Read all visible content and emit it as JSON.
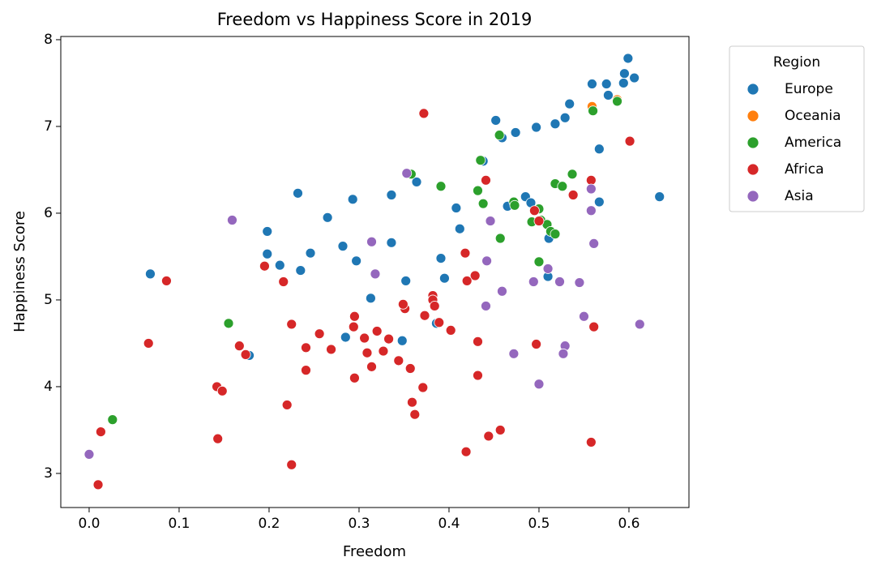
{
  "chart_data": {
    "type": "scatter",
    "title": "Freedom vs Happiness Score in 2019",
    "x_label": "Freedom",
    "y_label": "Happiness Score",
    "xlim": [
      -0.0315,
      0.6667
    ],
    "ylim": [
      2.607,
      8.037
    ],
    "xticks": [
      {
        "value": 0,
        "label": "0.0"
      },
      0.1,
      0.2,
      0.3,
      0.4,
      0.5,
      0.6
    ],
    "yticks": [
      3,
      4,
      5,
      6,
      7,
      8
    ],
    "grid": false,
    "legend": {
      "title": "Region",
      "location": "outside upper right"
    },
    "series": [
      {
        "name": "Europe",
        "color": "#1f77b4",
        "x": [
          0.599,
          0.595,
          0.606,
          0.594,
          0.559,
          0.575,
          0.577,
          0.534,
          0.529,
          0.518,
          0.497,
          0.474,
          0.452,
          0.459,
          0.567,
          0.438,
          0.364,
          0.408,
          0.412,
          0.465,
          0.485,
          0.491,
          0.567,
          0.634,
          0.511,
          0.51,
          0.395,
          0.391,
          0.336,
          0.336,
          0.293,
          0.232,
          0.265,
          0.198,
          0.198,
          0.212,
          0.246,
          0.235,
          0.282,
          0.297,
          0.352,
          0.313,
          0.068,
          0.178,
          0.285,
          0.348,
          0.386
        ],
        "values": [
          7.785,
          7.61,
          7.56,
          7.5,
          7.49,
          7.49,
          7.36,
          7.26,
          7.1,
          7.03,
          6.99,
          6.93,
          7.07,
          6.87,
          6.74,
          6.6,
          6.36,
          6.06,
          5.82,
          6.08,
          6.19,
          6.12,
          6.13,
          6.19,
          5.71,
          5.27,
          5.25,
          5.48,
          6.21,
          5.66,
          6.16,
          6.23,
          5.95,
          5.79,
          5.53,
          5.4,
          5.54,
          5.34,
          5.62,
          5.45,
          5.22,
          5.02,
          5.3,
          4.36,
          4.57,
          4.53,
          4.73
        ]
      },
      {
        "name": "Oceania",
        "color": "#ff7f0e",
        "x": [
          0.559,
          0.587
        ],
        "values": [
          7.23,
          7.31
        ]
      },
      {
        "name": "America",
        "color": "#2ca02c",
        "x": [
          0.456,
          0.56,
          0.587,
          0.435,
          0.358,
          0.391,
          0.432,
          0.438,
          0.472,
          0.473,
          0.518,
          0.526,
          0.537,
          0.5,
          0.492,
          0.502,
          0.509,
          0.513,
          0.518,
          0.457,
          0.5,
          0.155,
          0.026
        ],
        "values": [
          6.9,
          7.18,
          7.29,
          6.61,
          6.45,
          6.31,
          6.26,
          6.11,
          6.13,
          6.09,
          6.34,
          6.31,
          6.45,
          6.05,
          5.9,
          5.92,
          5.87,
          5.79,
          5.76,
          5.71,
          5.44,
          4.73,
          3.62
        ]
      },
      {
        "name": "Africa",
        "color": "#d62728",
        "x": [
          0.372,
          0.601,
          0.441,
          0.558,
          0.538,
          0.495,
          0.5,
          0.418,
          0.429,
          0.42,
          0.195,
          0.216,
          0.086,
          0.382,
          0.382,
          0.384,
          0.351,
          0.349,
          0.373,
          0.295,
          0.225,
          0.256,
          0.294,
          0.32,
          0.306,
          0.333,
          0.389,
          0.402,
          0.561,
          0.497,
          0.432,
          0.066,
          0.167,
          0.241,
          0.269,
          0.174,
          0.309,
          0.327,
          0.314,
          0.344,
          0.357,
          0.241,
          0.432,
          0.295,
          0.142,
          0.148,
          0.371,
          0.359,
          0.22,
          0.362,
          0.013,
          0.457,
          0.444,
          0.419,
          0.143,
          0.558,
          0.225,
          0.01
        ],
        "values": [
          7.15,
          6.83,
          6.38,
          6.38,
          6.21,
          6.03,
          5.91,
          5.54,
          5.28,
          5.22,
          5.39,
          5.21,
          5.22,
          5.05,
          5.0,
          4.93,
          4.9,
          4.95,
          4.82,
          4.81,
          4.72,
          4.61,
          4.69,
          4.64,
          4.56,
          4.55,
          4.74,
          4.65,
          4.69,
          4.49,
          4.52,
          4.5,
          4.47,
          4.45,
          4.43,
          4.37,
          4.39,
          4.41,
          4.23,
          4.3,
          4.21,
          4.19,
          4.13,
          4.1,
          4.0,
          3.95,
          3.99,
          3.82,
          3.79,
          3.68,
          3.48,
          3.5,
          3.43,
          3.25,
          3.4,
          3.36,
          3.1,
          2.87
        ]
      },
      {
        "name": "Asia",
        "color": "#9467bd",
        "x": [
          0.353,
          0.159,
          0.446,
          0.558,
          0.558,
          0.561,
          0.314,
          0.318,
          0.442,
          0.459,
          0.51,
          0.494,
          0.523,
          0.545,
          0.441,
          0.55,
          0.612,
          0.529,
          0.527,
          0.472,
          0.5,
          0.0
        ],
        "values": [
          6.46,
          5.92,
          5.91,
          6.28,
          6.03,
          5.65,
          5.67,
          5.3,
          5.45,
          5.1,
          5.36,
          5.21,
          5.21,
          5.2,
          4.93,
          4.81,
          4.72,
          4.47,
          4.38,
          4.38,
          4.03,
          3.22
        ]
      }
    ]
  }
}
